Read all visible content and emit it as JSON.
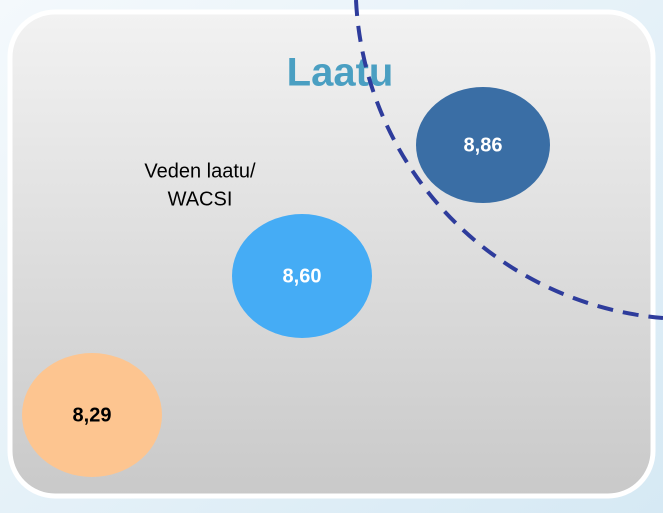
{
  "title": "Laatu",
  "label": {
    "lines": [
      "Veden laatu/",
      "WACSI"
    ]
  },
  "bubbles": [
    {
      "text": "8,86",
      "color": "#3a6ea5",
      "text_color": "#ffffff"
    },
    {
      "text": "8,60",
      "color": "#45acf5",
      "text_color": "#ffffff"
    },
    {
      "text": "8,29",
      "color": "#fdc590",
      "text_color": "#000000"
    }
  ]
}
